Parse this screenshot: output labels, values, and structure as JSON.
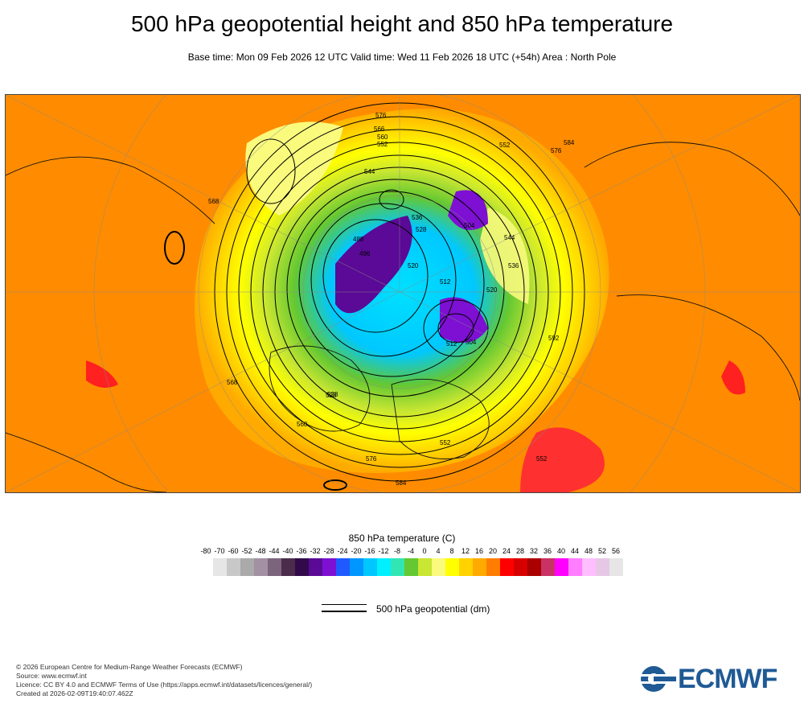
{
  "header": {
    "title": "500 hPa geopotential height and 850 hPa temperature",
    "subtitle": "Base time: Mon 09 Feb 2026 12 UTC Valid time: Wed 11 Feb 2026 18 UTC (+54h) Area : North Pole"
  },
  "map": {
    "contour_labels": [
      "576",
      "566",
      "560",
      "552",
      "552",
      "576",
      "584",
      "544",
      "536",
      "528",
      "520",
      "512",
      "504",
      "496",
      "488",
      "512",
      "504",
      "520",
      "528",
      "536",
      "544",
      "552",
      "560",
      "568",
      "576",
      "584",
      "592",
      "568",
      "552",
      "528"
    ],
    "colors": {
      "warm": "#ff8c00",
      "hot": "#e60000",
      "ocean_outer": "#ff7f00"
    }
  },
  "legend": {
    "temperature_title": "850 hPa temperature (C)",
    "temperature_ticks": [
      "-80",
      "-70",
      "-60",
      "-52",
      "-48",
      "-44",
      "-40",
      "-36",
      "-32",
      "-28",
      "-24",
      "-20",
      "-16",
      "-12",
      "-8",
      "-4",
      "0",
      "4",
      "8",
      "12",
      "16",
      "20",
      "24",
      "28",
      "32",
      "36",
      "40",
      "44",
      "48",
      "52",
      "56"
    ],
    "temperature_colors": [
      "#e6e6e6",
      "#c8c8c8",
      "#aaaaaa",
      "#a391a3",
      "#7d647d",
      "#4b2d4b",
      "#320a4b",
      "#5a0a96",
      "#7d10d2",
      "#1e5aff",
      "#0096ff",
      "#00c8ff",
      "#00f0ff",
      "#32e6b4",
      "#64c832",
      "#c8e632",
      "#fafa7d",
      "#ffff00",
      "#ffd200",
      "#ffaa00",
      "#ff7d00",
      "#ff0000",
      "#d70000",
      "#aa0000",
      "#c83264",
      "#ff00ff",
      "#ff7dff",
      "#ffbeff",
      "#e6c8e6",
      "#e6e6e6"
    ],
    "geopotential_label": "500 hPa geopotential (dm)"
  },
  "footer": {
    "line1": "© 2026 European Centre for Medium-Range Weather Forecasts (ECMWF)",
    "line2": "Source: www.ecmwf.int",
    "line3": "Licence: CC BY 4.0 and ECMWF Terms of Use (https://apps.ecmwf.int/datasets/licences/general/)",
    "line4": "Created at 2026-02-09T19:40:07.462Z",
    "logo_text": "ECMWF"
  }
}
